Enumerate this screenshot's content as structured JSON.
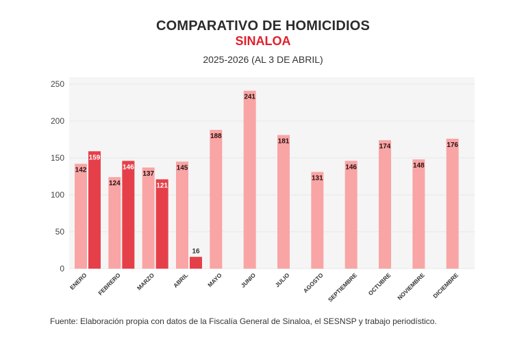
{
  "header": {
    "title": "COMPARATIVO DE HOMICIDIOS",
    "subtitle": "SINALOA",
    "period": "2025-2026 (AL 3 DE ABRIL)"
  },
  "footer": {
    "source": "Fuente: Elaboración propia con datos de la Fiscalía General de Sinaloa, el SESNSP y trabajo periodístico."
  },
  "colors": {
    "series_2025": "#f9a5a5",
    "series_2026": "#e5404a",
    "plot_bg": "#f5f5f5",
    "subtitle": "#e0202b"
  },
  "chart_data": {
    "type": "bar",
    "title": "COMPARATIVO DE HOMICIDIOS",
    "subtitle": "SINALOA — 2025-2026 (AL 3 DE ABRIL)",
    "xlabel": "",
    "ylabel": "",
    "ylim": [
      0,
      250
    ],
    "yticks": [
      0,
      50,
      100,
      150,
      200,
      250
    ],
    "grid": true,
    "legend": "none",
    "categories": [
      "ENERO",
      "FEBRERO",
      "MARZO",
      "ABRIL",
      "MAYO",
      "JUNIO",
      "JULIO",
      "AGOSTO",
      "SEPTIEMBRE",
      "OCTUBRE",
      "NOVIEMBRE",
      "DICIEMBRE"
    ],
    "series": [
      {
        "name": "2025",
        "values": [
          142,
          124,
          137,
          145,
          188,
          241,
          181,
          131,
          146,
          174,
          148,
          176
        ]
      },
      {
        "name": "2026",
        "values": [
          159,
          146,
          121,
          16,
          null,
          null,
          null,
          null,
          null,
          null,
          null,
          null
        ]
      }
    ]
  }
}
